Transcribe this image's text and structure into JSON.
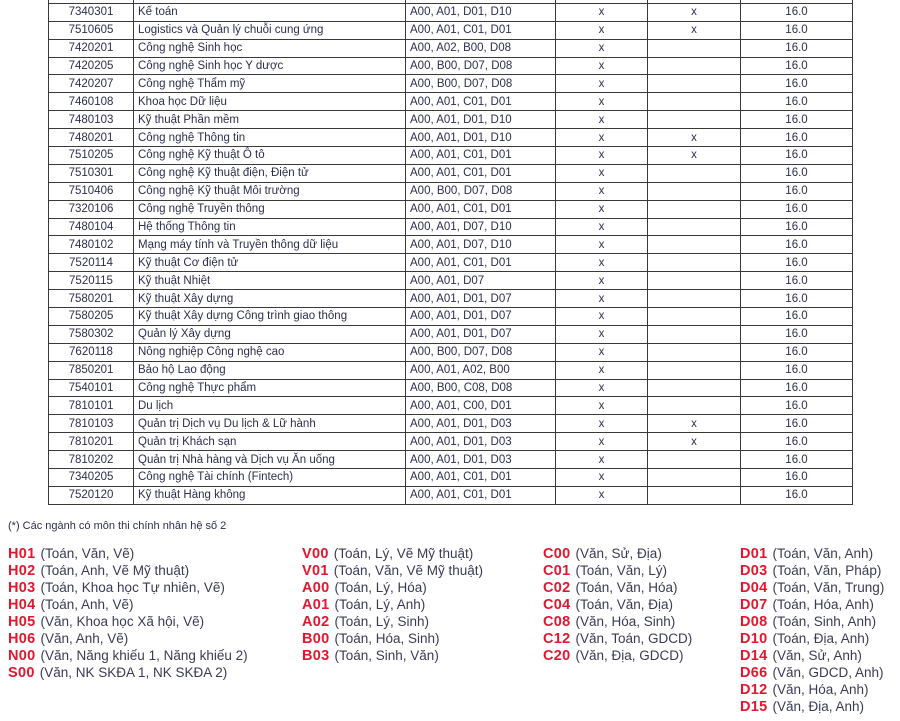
{
  "table": {
    "rows": [
      [
        "",
        "",
        "",
        "",
        "",
        ""
      ],
      [
        "7340301",
        "Kế toán",
        "A00, A01, D01, D10",
        "x",
        "x",
        "16.0"
      ],
      [
        "7510605",
        "Logistics và Quản lý chuỗi cung ứng",
        "A00, A01, C01, D01",
        "x",
        "x",
        "16.0"
      ],
      [
        "7420201",
        "Công nghệ Sinh học",
        "A00, A02, B00, D08",
        "x",
        "",
        "16.0"
      ],
      [
        "7420205",
        "Công nghệ Sinh học Y dược",
        "A00, B00, D07, D08",
        "x",
        "",
        "16.0"
      ],
      [
        "7420207",
        "Công nghệ Thẩm mỹ",
        "A00, B00, D07, D08",
        "x",
        "",
        "16.0"
      ],
      [
        "7460108",
        "Khoa học Dữ liệu",
        "A00, A01, C01, D01",
        "x",
        "",
        "16.0"
      ],
      [
        "7480103",
        "Kỹ thuật Phần mềm",
        "A00, A01, D01, D10",
        "x",
        "",
        "16.0"
      ],
      [
        "7480201",
        "Công nghệ Thông tin",
        "A00, A01, D01, D10",
        "x",
        "x",
        "16.0"
      ],
      [
        "7510205",
        "Công nghệ Kỹ thuật Ô tô",
        "A00, A01, C01, D01",
        "x",
        "x",
        "16.0"
      ],
      [
        "7510301",
        "Công nghệ Kỹ thuật điện, Điện tử",
        "A00, A01, C01, D01",
        "x",
        "",
        "16.0"
      ],
      [
        "7510406",
        "Công nghệ Kỹ thuật Môi trường",
        "A00, B00, D07, D08",
        "x",
        "",
        "16.0"
      ],
      [
        "7320106",
        "Công nghệ Truyền thông",
        "A00, A01, C01, D01",
        "x",
        "",
        "16.0"
      ],
      [
        "7480104",
        "Hệ thống Thông tin",
        "A00, A01, D07, D10",
        "x",
        "",
        "16.0"
      ],
      [
        "7480102",
        "Mạng máy tính và Truyền thông dữ liệu",
        "A00, A01, D07, D10",
        "x",
        "",
        "16.0"
      ],
      [
        "7520114",
        "Kỹ thuật Cơ điện tử",
        "A00, A01, C01, D01",
        "x",
        "",
        "16.0"
      ],
      [
        "7520115",
        "Kỹ thuật Nhiệt",
        "A00, A01, D07",
        "x",
        "",
        "16.0"
      ],
      [
        "7580201",
        "Kỹ thuật Xây dựng",
        "A00, A01, D01, D07",
        "x",
        "",
        "16.0"
      ],
      [
        "7580205",
        "Kỹ thuật Xây dựng Công trình giao thông",
        "A00, A01, D01, D07",
        "x",
        "",
        "16.0"
      ],
      [
        "7580302",
        "Quản lý Xây dựng",
        "A00, A01, D01, D07",
        "x",
        "",
        "16.0"
      ],
      [
        "7620118",
        "Nông nghiệp Công nghệ cao",
        "A00, B00, D07, D08",
        "x",
        "",
        "16.0"
      ],
      [
        "7850201",
        "Bảo hộ Lao động",
        "A00, A01, A02, B00",
        "x",
        "",
        "16.0"
      ],
      [
        "7540101",
        "Công nghệ Thực phẩm",
        "A00, B00, C08, D08",
        "x",
        "",
        "16.0"
      ],
      [
        "7810101",
        "Du lịch",
        "A00, A01, C00, D01",
        "x",
        "",
        "16.0"
      ],
      [
        "7810103",
        "Quản trị Dịch vụ Du lịch & Lữ hành",
        "A00, A01, D01, D03",
        "x",
        "x",
        "16.0"
      ],
      [
        "7810201",
        "Quản trị Khách sạn",
        "A00, A01, D01, D03",
        "x",
        "x",
        "16.0"
      ],
      [
        "7810202",
        "Quản trị Nhà hàng và Dịch vụ Ăn uống",
        "A00, A01, D01, D03",
        "x",
        "",
        "16.0"
      ],
      [
        "7340205",
        "Công nghệ Tài chính (Fintech)",
        "A00, A01, C01, D01",
        "x",
        "",
        "16.0"
      ],
      [
        "7520120",
        "Kỹ thuật Hàng không",
        "A00, A01, C01, D01",
        "x",
        "",
        "16.0"
      ]
    ]
  },
  "footnote": "(*) Các ngành có môn thi chính nhân hệ số 2",
  "colors": {
    "code": "#e3162f",
    "text": "#2e2d4d"
  },
  "legend": [
    [
      {
        "code": "H01",
        "desc": "(Toán, Văn, Vẽ)"
      },
      {
        "code": "H02",
        "desc": "(Toán, Anh, Vẽ Mỹ thuật)"
      },
      {
        "code": "H03",
        "desc": "(Toán, Khoa học Tự nhiên, Vẽ)"
      },
      {
        "code": "H04",
        "desc": "(Toán, Anh, Vẽ)"
      },
      {
        "code": "H05",
        "desc": "(Văn, Khoa học Xã hội, Vẽ)"
      },
      {
        "code": "H06",
        "desc": "(Văn, Anh, Vẽ)"
      },
      {
        "code": "N00",
        "desc": "(Văn, Năng khiếu 1, Năng khiếu 2)"
      },
      {
        "code": "S00",
        "desc": "(Văn, NK SKĐA 1, NK SKĐA 2)"
      }
    ],
    [
      {
        "code": "V00",
        "desc": "(Toán, Lý, Vẽ Mỹ thuật)"
      },
      {
        "code": "V01",
        "desc": "(Toán, Văn, Vẽ Mỹ thuật)"
      },
      {
        "code": "A00",
        "desc": "(Toán, Lý, Hóa)"
      },
      {
        "code": "A01",
        "desc": "(Toán, Lý, Anh)"
      },
      {
        "code": "A02",
        "desc": "(Toán, Lý, Sinh)"
      },
      {
        "code": "B00",
        "desc": "(Toán, Hóa, Sinh)"
      },
      {
        "code": "B03",
        "desc": "(Toán, Sinh, Văn)"
      }
    ],
    [
      {
        "code": "C00",
        "desc": "(Văn, Sử, Địa)"
      },
      {
        "code": "C01",
        "desc": "(Toán, Văn, Lý)"
      },
      {
        "code": "C02",
        "desc": "(Toán, Văn, Hóa)"
      },
      {
        "code": "C04",
        "desc": "(Toán, Văn, Địa)"
      },
      {
        "code": "C08",
        "desc": "(Văn, Hóa, Sinh)"
      },
      {
        "code": "C12",
        "desc": "(Văn, Toán, GDCD)"
      },
      {
        "code": "C20",
        "desc": "(Văn, Địa, GDCD)"
      }
    ],
    [
      {
        "code": "D01",
        "desc": "(Toán, Văn, Anh)"
      },
      {
        "code": "D03",
        "desc": "(Toán, Văn, Pháp)"
      },
      {
        "code": "D04",
        "desc": "(Toán, Văn, Trung)"
      },
      {
        "code": "D07",
        "desc": "(Toán, Hóa, Anh)"
      },
      {
        "code": "D08",
        "desc": "(Toán, Sinh, Anh)"
      },
      {
        "code": "D10",
        "desc": "(Toán, Địa, Anh)"
      },
      {
        "code": "D14",
        "desc": "(Văn, Sử, Anh)"
      },
      {
        "code": "D66",
        "desc": "(Văn, GDCD, Anh)"
      },
      {
        "code": "D12",
        "desc": "(Văn, Hóa, Anh)"
      },
      {
        "code": "D15",
        "desc": "(Văn, Địa, Anh)"
      }
    ]
  ]
}
